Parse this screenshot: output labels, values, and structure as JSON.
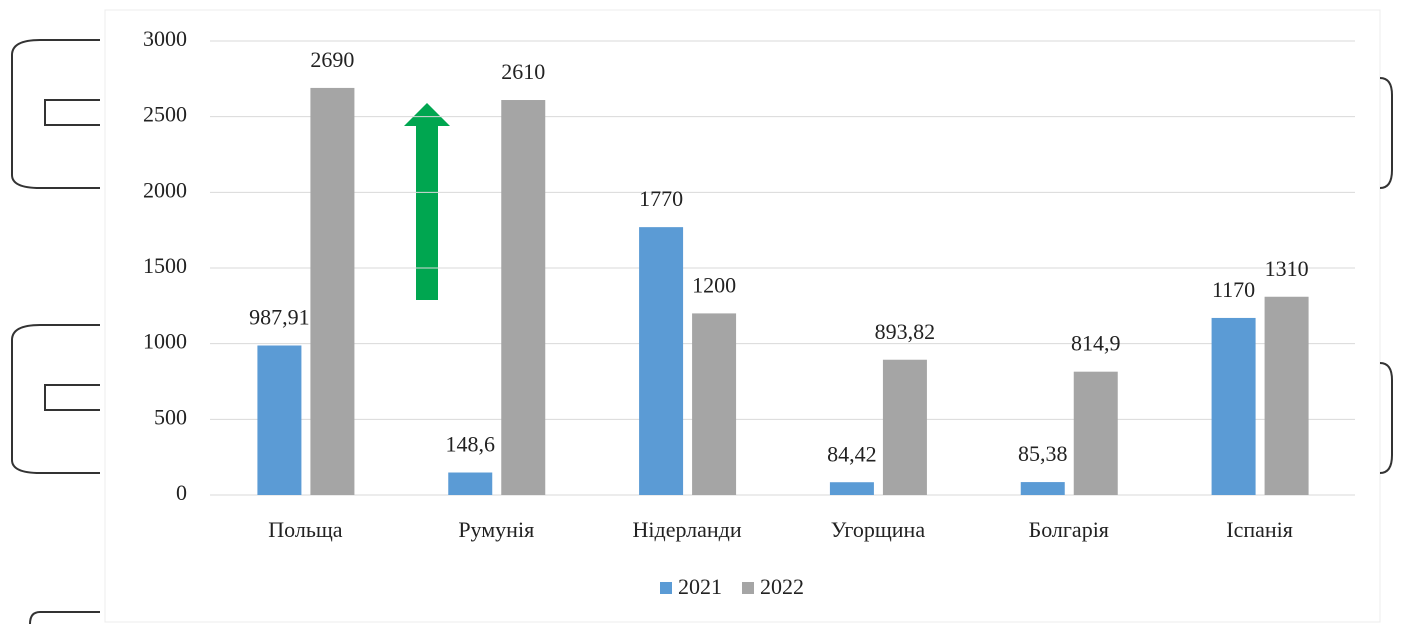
{
  "chart_data": {
    "type": "bar",
    "categories": [
      "Польща",
      "Румунія",
      "Нідерланди",
      "Угорщина",
      "Болгарія",
      "Іспанія"
    ],
    "series": [
      {
        "name": "2021",
        "color": "#5b9bd5",
        "values": [
          987.91,
          148.6,
          1770,
          84.42,
          85.38,
          1170
        ],
        "value_labels": [
          "987,91",
          "148,6",
          "1770",
          "84,42",
          "85,38",
          "1170"
        ]
      },
      {
        "name": "2022",
        "color": "#a5a5a5",
        "values": [
          2690,
          2610,
          1200,
          893.82,
          814.9,
          1310
        ],
        "value_labels": [
          "2690",
          "2610",
          "1200",
          "893,82",
          "814,9",
          "1310"
        ]
      }
    ],
    "ylim": [
      0,
      3000
    ],
    "yticks": [
      0,
      500,
      1000,
      1500,
      2000,
      2500,
      3000
    ],
    "grid": true,
    "legend": "bottom"
  }
}
